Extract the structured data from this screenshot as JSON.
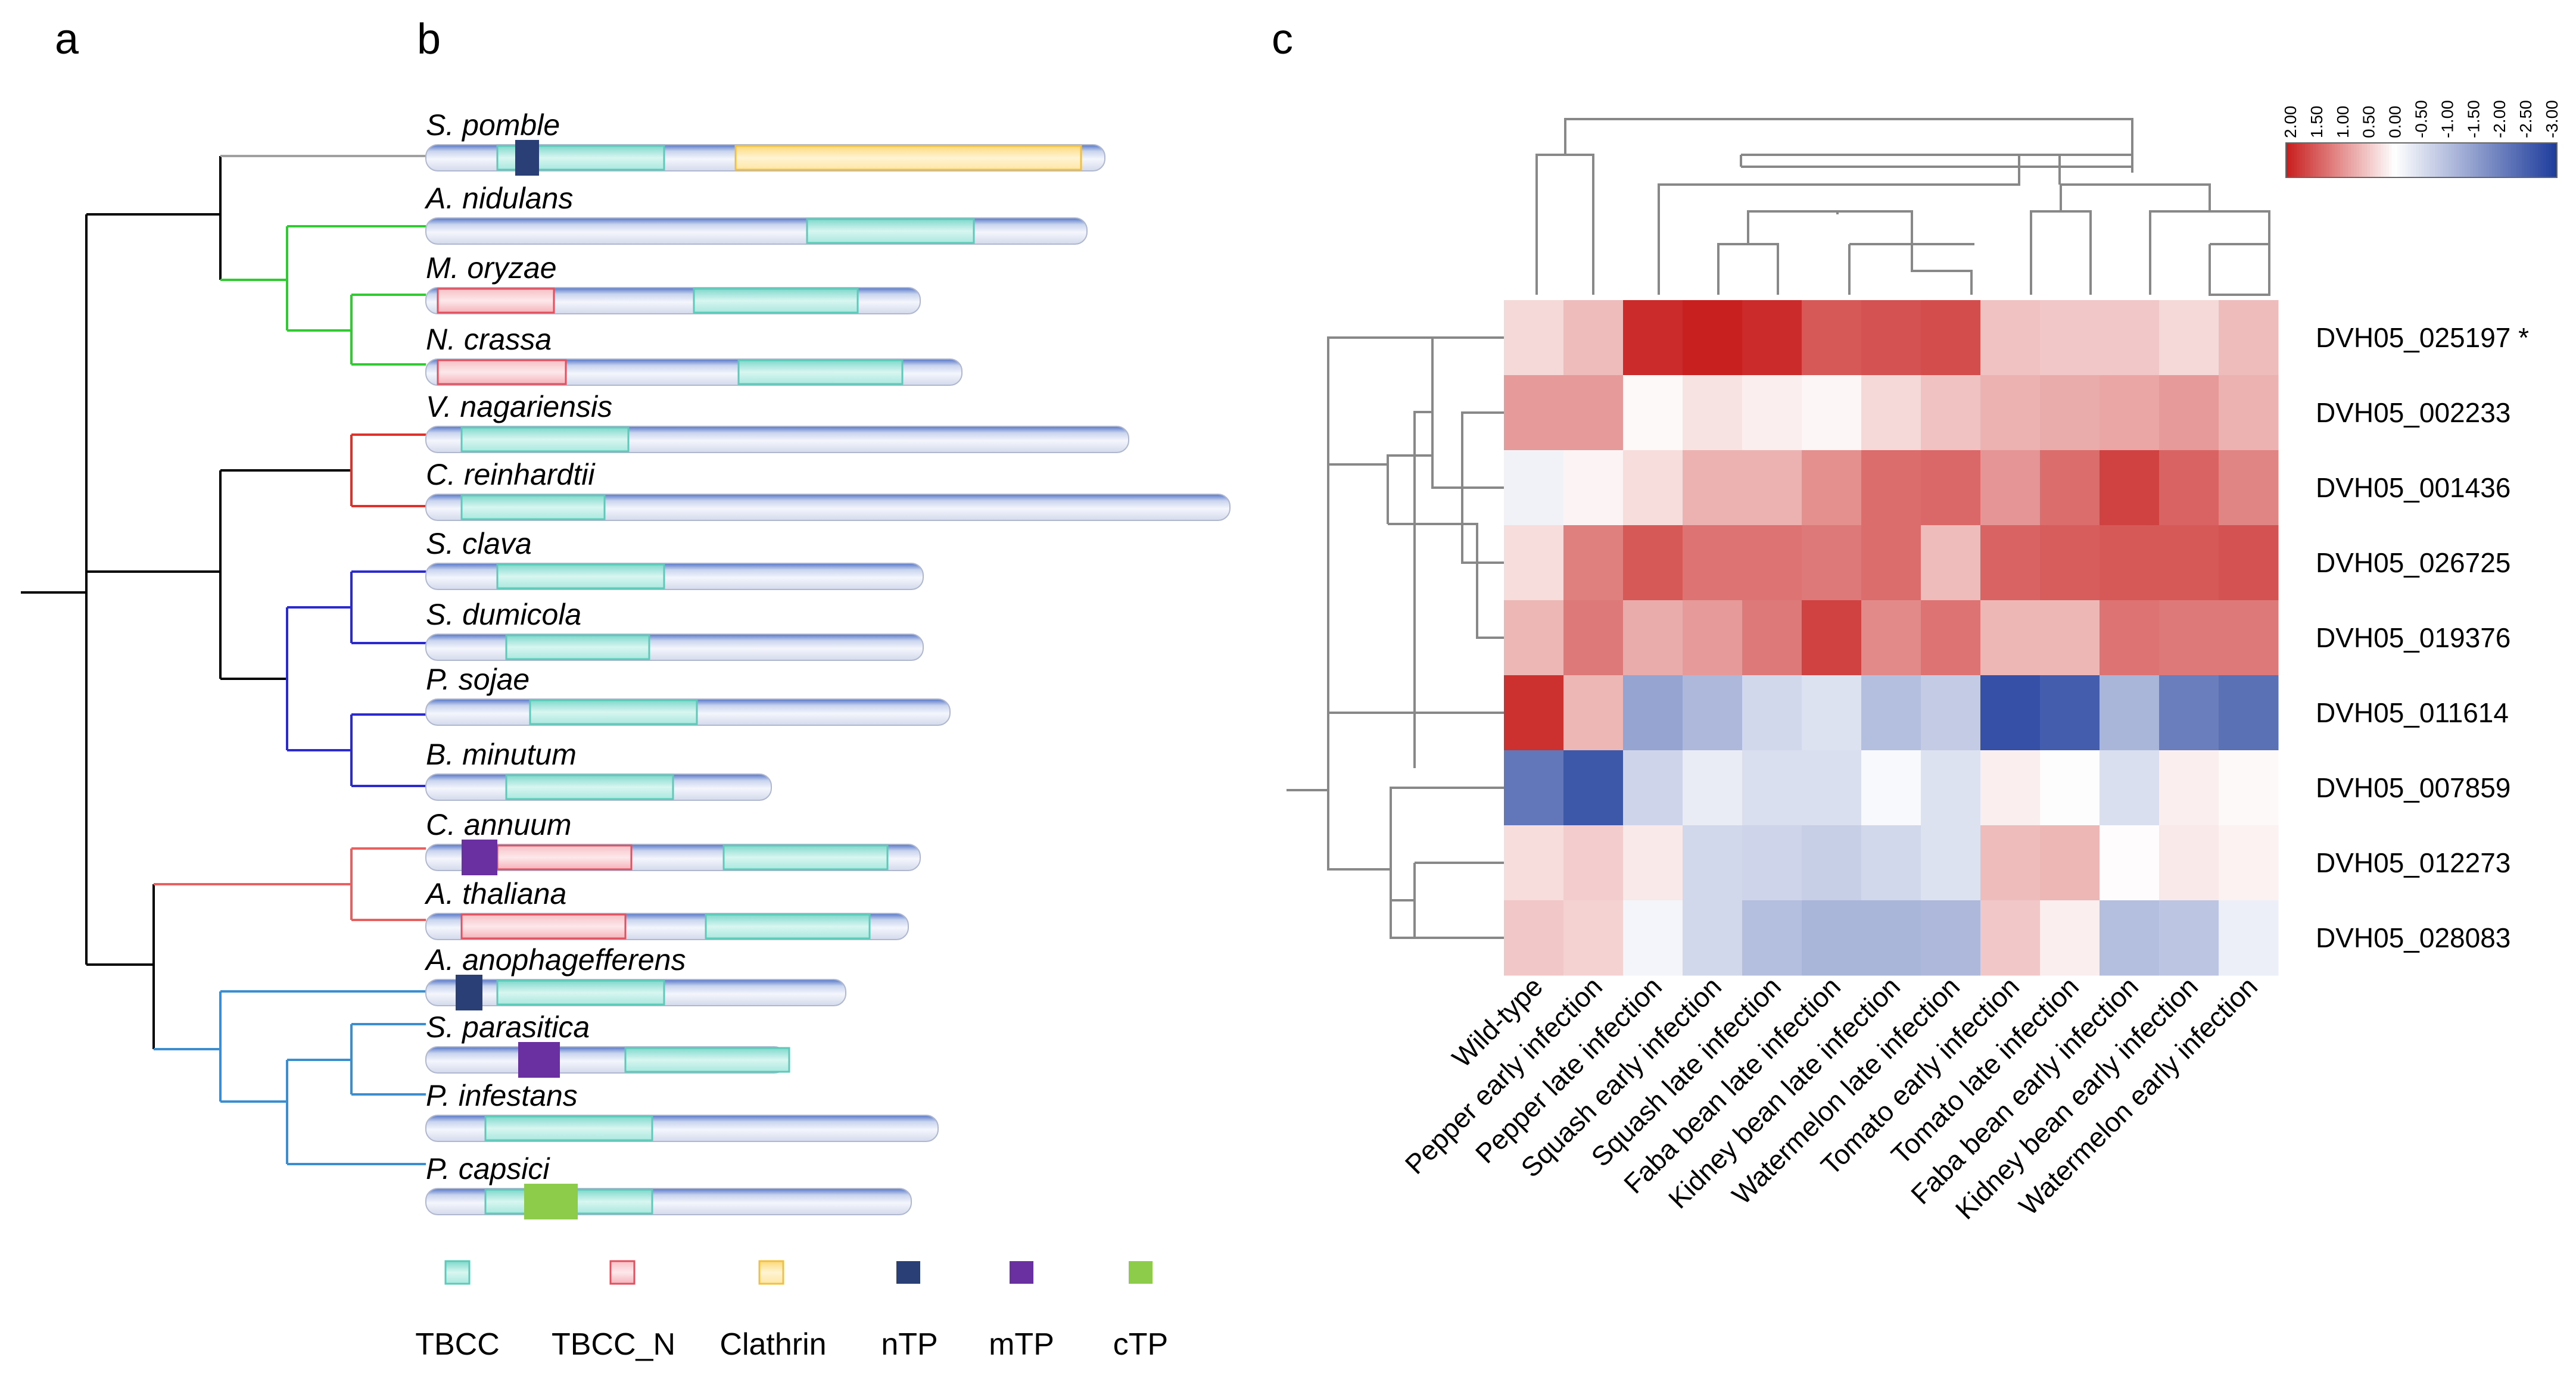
{
  "panels": {
    "a": "a",
    "b": "b",
    "c": "c"
  },
  "species": [
    {
      "name": "S. pomble",
      "length": 1140,
      "domains": [
        {
          "type": "TBCC",
          "start": 120,
          "end": 400
        },
        {
          "type": "nTP",
          "start": 150,
          "end": 190
        },
        {
          "type": "Clathrin",
          "start": 520,
          "end": 1100
        }
      ]
    },
    {
      "name": "A. nidulans",
      "length": 1110,
      "domains": [
        {
          "type": "TBCC",
          "start": 640,
          "end": 920
        }
      ]
    },
    {
      "name": "M. oryzae",
      "length": 830,
      "domains": [
        {
          "type": "TBCC_N",
          "start": 20,
          "end": 215
        },
        {
          "type": "TBCC",
          "start": 450,
          "end": 725
        }
      ]
    },
    {
      "name": "N. crassa",
      "length": 900,
      "domains": [
        {
          "type": "TBCC_N",
          "start": 20,
          "end": 235
        },
        {
          "type": "TBCC",
          "start": 525,
          "end": 800
        }
      ]
    },
    {
      "name": "V. nagariensis",
      "length": 1180,
      "domains": [
        {
          "type": "TBCC",
          "start": 60,
          "end": 340
        }
      ]
    },
    {
      "name": "C. reinhardtii",
      "length": 1350,
      "domains": [
        {
          "type": "TBCC",
          "start": 60,
          "end": 300
        }
      ]
    },
    {
      "name": "S. clava",
      "length": 835,
      "domains": [
        {
          "type": "TBCC",
          "start": 120,
          "end": 400
        }
      ]
    },
    {
      "name": "S. dumicola",
      "length": 835,
      "domains": [
        {
          "type": "TBCC",
          "start": 135,
          "end": 375
        }
      ]
    },
    {
      "name": "P. sojae",
      "length": 880,
      "domains": [
        {
          "type": "TBCC",
          "start": 175,
          "end": 455
        }
      ]
    },
    {
      "name": "B. minutum",
      "length": 580,
      "domains": [
        {
          "type": "TBCC",
          "start": 135,
          "end": 415
        }
      ]
    },
    {
      "name": "C. annuum",
      "length": 830,
      "domains": [
        {
          "type": "TBCC_N",
          "start": 120,
          "end": 345
        },
        {
          "type": "mTP",
          "start": 60,
          "end": 120
        },
        {
          "type": "TBCC",
          "start": 500,
          "end": 775
        }
      ]
    },
    {
      "name": "A. thaliana",
      "length": 810,
      "domains": [
        {
          "type": "TBCC_N",
          "start": 60,
          "end": 335
        },
        {
          "type": "TBCC",
          "start": 470,
          "end": 745
        }
      ]
    },
    {
      "name": "A. anophagefferens",
      "length": 705,
      "domains": [
        {
          "type": "nTP",
          "start": 50,
          "end": 95
        },
        {
          "type": "TBCC",
          "start": 120,
          "end": 400
        }
      ]
    },
    {
      "name": "S. parasitica",
      "length": 605,
      "domains": [
        {
          "type": "mTP",
          "start": 155,
          "end": 225
        },
        {
          "type": "TBCC",
          "start": 335,
          "end": 610
        }
      ]
    },
    {
      "name": "P. infestans",
      "length": 860,
      "domains": [
        {
          "type": "TBCC",
          "start": 100,
          "end": 380
        }
      ]
    },
    {
      "name": "P. capsici",
      "length": 815,
      "domains": [
        {
          "type": "TBCC",
          "start": 100,
          "end": 380
        },
        {
          "type": "cTP",
          "start": 165,
          "end": 255
        }
      ]
    }
  ],
  "legend": [
    {
      "type": "TBCC",
      "label": "TBCC"
    },
    {
      "type": "TBCC_N",
      "label": "TBCC_N"
    },
    {
      "type": "Clathrin",
      "label": "Clathrin"
    },
    {
      "type": "nTP",
      "label": "nTP"
    },
    {
      "type": "mTP",
      "label": "mTP"
    },
    {
      "type": "cTP",
      "label": "cTP"
    }
  ],
  "colors": {
    "TBCC": "#a8e6de",
    "TBCC_N": "#f6b3bb",
    "Clathrin": "#fde4a0",
    "nTP": "#2a3f75",
    "mTP": "#6a2fa0",
    "cTP": "#8ccc4a",
    "clade_gray": "#a0a0a0",
    "clade_green": "#2ecc2e",
    "clade_red": "#e0302a",
    "clade_blue": "#2a2ad0",
    "clade_orange": "#e86060",
    "clade_sky": "#3b8fd0",
    "heat_high": "#c8201f",
    "heat_mid": "#ffffff",
    "heat_low": "#1f3d9c"
  },
  "chart_data": {
    "type": "heatmap",
    "genes": [
      "DVH05_025197 *",
      "DVH05_002233",
      "DVH05_001436",
      "DVH05_026725",
      "DVH05_019376",
      "DVH05_011614",
      "DVH05_007859",
      "DVH05_012273",
      "DVH05_028083"
    ],
    "conditions": [
      "Wild-type",
      "Pepper early infection",
      "Pepper late infection",
      "Squash early infection",
      "Squash late infection",
      "Faba bean late infection",
      "Kidney bean late infection",
      "Watermelon late infection",
      "Tomato early infection",
      "Tomato late infection",
      "Faba bean early infection",
      "Kidney bean early infection",
      "Watermelon early infection"
    ],
    "values": [
      [
        0.35,
        0.6,
        1.9,
        2.0,
        1.9,
        1.5,
        1.55,
        1.6,
        0.55,
        0.5,
        0.5,
        0.35,
        0.6
      ],
      [
        0.9,
        0.9,
        0.05,
        0.25,
        0.15,
        0.08,
        0.35,
        0.55,
        0.7,
        0.75,
        0.8,
        0.9,
        0.7
      ],
      [
        -0.2,
        0.1,
        0.3,
        0.7,
        0.7,
        1.0,
        1.3,
        1.35,
        0.95,
        1.3,
        1.7,
        1.4,
        1.1
      ],
      [
        0.3,
        1.15,
        1.5,
        1.25,
        1.25,
        1.2,
        1.3,
        0.6,
        1.4,
        1.45,
        1.5,
        1.5,
        1.55
      ],
      [
        0.65,
        1.2,
        0.75,
        0.9,
        1.2,
        1.7,
        1.05,
        1.25,
        0.65,
        0.65,
        1.25,
        1.2,
        1.2
      ],
      [
        1.85,
        0.65,
        -1.4,
        -1.1,
        -0.6,
        -0.45,
        -1.0,
        -0.8,
        -2.7,
        -2.5,
        -1.15,
        -2.0,
        -2.2
      ],
      [
        -2.1,
        -2.6,
        -0.65,
        -0.3,
        -0.5,
        -0.5,
        -0.1,
        -0.45,
        0.15,
        0.02,
        -0.5,
        0.15,
        0.05
      ],
      [
        0.3,
        0.45,
        0.2,
        -0.6,
        -0.65,
        -0.75,
        -0.6,
        -0.45,
        0.6,
        0.65,
        0.03,
        0.2,
        0.12
      ],
      [
        0.5,
        0.4,
        -0.15,
        -0.6,
        -1.0,
        -1.15,
        -1.15,
        -1.1,
        0.5,
        0.15,
        -1.0,
        -0.9,
        -0.25
      ]
    ],
    "scale_ticks": [
      "2.00",
      "1.50",
      "1.00",
      "0.50",
      "0.00",
      "-0.50",
      "-1.00",
      "-1.50",
      "-2.00",
      "-2.50",
      "-3.00"
    ],
    "vrange": [
      -3.0,
      2.0
    ]
  }
}
